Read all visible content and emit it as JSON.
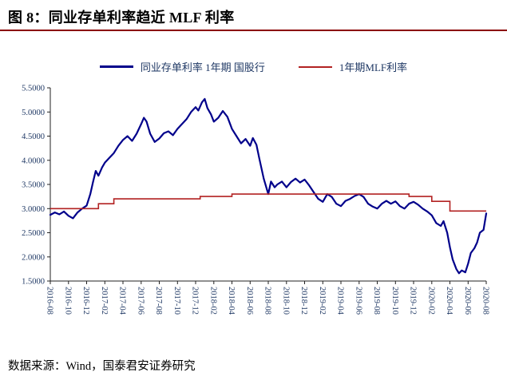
{
  "figure": {
    "title": "图 8：同业存单利率趋近 MLF 利率",
    "source": "数据来源：Wind，国泰君安证券研究"
  },
  "colors": {
    "title_rule": "#8B0000",
    "axis_text": "#1F3864",
    "axis_line": "#222222",
    "ncd_line": "#00008B",
    "mlf_line": "#B22222"
  },
  "chart_data": {
    "type": "line",
    "title": "同业存单利率趋近 MLF 利率",
    "xlabel": "",
    "ylabel": "",
    "grid": false,
    "legend_position": "top",
    "ylim": [
      1.5,
      5.5
    ],
    "ytick_values": [
      1.5,
      2.0,
      2.5,
      3.0,
      3.5,
      4.0,
      4.5,
      5.0,
      5.5
    ],
    "ytick_labels": [
      "1.5000",
      "2.0000",
      "2.5000",
      "3.0000",
      "3.5000",
      "4.0000",
      "4.5000",
      "5.0000",
      "5.5000"
    ],
    "x_unit": "months since 2016-08",
    "xtick_positions": [
      0,
      2,
      4,
      6,
      8,
      10,
      12,
      14,
      16,
      18,
      20,
      22,
      24,
      26,
      28,
      30,
      32,
      34,
      36,
      38,
      40,
      42,
      44,
      46,
      48
    ],
    "xtick_labels": [
      "2016-08",
      "2016-10",
      "2016-12",
      "2017-02",
      "2017-04",
      "2017-06",
      "2017-08",
      "2017-10",
      "2017-12",
      "2018-02",
      "2018-04",
      "2018-06",
      "2018-08",
      "2018-10",
      "2018-12",
      "2019-02",
      "2019-04",
      "2019-06",
      "2019-08",
      "2019-10",
      "2019-12",
      "2020-02",
      "2020-04",
      "2020-06",
      "2020-08"
    ],
    "series": [
      {
        "name": "同业存单利率 1年期 国股行",
        "color": "#00008B",
        "width": 2.2,
        "step": false,
        "points": [
          [
            0,
            2.87
          ],
          [
            0.5,
            2.92
          ],
          [
            1,
            2.88
          ],
          [
            1.5,
            2.94
          ],
          [
            2,
            2.85
          ],
          [
            2.5,
            2.8
          ],
          [
            3,
            2.92
          ],
          [
            3.5,
            3.0
          ],
          [
            4,
            3.06
          ],
          [
            4.4,
            3.3
          ],
          [
            4.7,
            3.55
          ],
          [
            5,
            3.78
          ],
          [
            5.3,
            3.68
          ],
          [
            5.7,
            3.85
          ],
          [
            6,
            3.95
          ],
          [
            6.5,
            4.05
          ],
          [
            7,
            4.15
          ],
          [
            7.5,
            4.3
          ],
          [
            8,
            4.42
          ],
          [
            8.5,
            4.5
          ],
          [
            9,
            4.4
          ],
          [
            9.5,
            4.55
          ],
          [
            10,
            4.75
          ],
          [
            10.3,
            4.88
          ],
          [
            10.6,
            4.8
          ],
          [
            11,
            4.55
          ],
          [
            11.5,
            4.38
          ],
          [
            12,
            4.45
          ],
          [
            12.5,
            4.56
          ],
          [
            13,
            4.6
          ],
          [
            13.5,
            4.52
          ],
          [
            14,
            4.65
          ],
          [
            14.5,
            4.75
          ],
          [
            15,
            4.85
          ],
          [
            15.5,
            5.0
          ],
          [
            16,
            5.1
          ],
          [
            16.3,
            5.03
          ],
          [
            16.7,
            5.2
          ],
          [
            17,
            5.27
          ],
          [
            17.3,
            5.08
          ],
          [
            17.7,
            4.95
          ],
          [
            18,
            4.8
          ],
          [
            18.5,
            4.88
          ],
          [
            19,
            5.02
          ],
          [
            19.5,
            4.9
          ],
          [
            20,
            4.65
          ],
          [
            20.5,
            4.5
          ],
          [
            21,
            4.35
          ],
          [
            21.5,
            4.44
          ],
          [
            22,
            4.3
          ],
          [
            22.3,
            4.46
          ],
          [
            22.7,
            4.32
          ],
          [
            23,
            4.05
          ],
          [
            23.5,
            3.62
          ],
          [
            24,
            3.3
          ],
          [
            24.3,
            3.56
          ],
          [
            24.7,
            3.44
          ],
          [
            25,
            3.5
          ],
          [
            25.5,
            3.56
          ],
          [
            26,
            3.44
          ],
          [
            26.5,
            3.55
          ],
          [
            27,
            3.62
          ],
          [
            27.5,
            3.54
          ],
          [
            28,
            3.6
          ],
          [
            28.5,
            3.48
          ],
          [
            29,
            3.34
          ],
          [
            29.5,
            3.2
          ],
          [
            30,
            3.14
          ],
          [
            30.5,
            3.3
          ],
          [
            31,
            3.24
          ],
          [
            31.5,
            3.1
          ],
          [
            32,
            3.05
          ],
          [
            32.5,
            3.16
          ],
          [
            33,
            3.2
          ],
          [
            33.5,
            3.26
          ],
          [
            34,
            3.3
          ],
          [
            34.5,
            3.24
          ],
          [
            35,
            3.1
          ],
          [
            35.5,
            3.04
          ],
          [
            36,
            3.0
          ],
          [
            36.5,
            3.1
          ],
          [
            37,
            3.16
          ],
          [
            37.5,
            3.1
          ],
          [
            38,
            3.15
          ],
          [
            38.5,
            3.05
          ],
          [
            39,
            3.0
          ],
          [
            39.5,
            3.1
          ],
          [
            40,
            3.14
          ],
          [
            40.5,
            3.08
          ],
          [
            41,
            3.0
          ],
          [
            41.5,
            2.94
          ],
          [
            42,
            2.86
          ],
          [
            42.5,
            2.7
          ],
          [
            43,
            2.64
          ],
          [
            43.3,
            2.74
          ],
          [
            43.7,
            2.5
          ],
          [
            44,
            2.2
          ],
          [
            44.3,
            1.95
          ],
          [
            44.7,
            1.75
          ],
          [
            45,
            1.66
          ],
          [
            45.3,
            1.72
          ],
          [
            45.7,
            1.68
          ],
          [
            46,
            1.86
          ],
          [
            46.3,
            2.08
          ],
          [
            46.7,
            2.18
          ],
          [
            47,
            2.3
          ],
          [
            47.3,
            2.5
          ],
          [
            47.7,
            2.56
          ],
          [
            48,
            2.9
          ]
        ]
      },
      {
        "name": "1年期MLF利率",
        "color": "#B22222",
        "width": 1.6,
        "step": true,
        "points": [
          [
            0,
            3.0
          ],
          [
            5.3,
            3.1
          ],
          [
            7,
            3.2
          ],
          [
            16.5,
            3.25
          ],
          [
            20,
            3.3
          ],
          [
            39.5,
            3.25
          ],
          [
            42,
            3.15
          ],
          [
            44,
            2.95
          ]
        ]
      }
    ]
  }
}
